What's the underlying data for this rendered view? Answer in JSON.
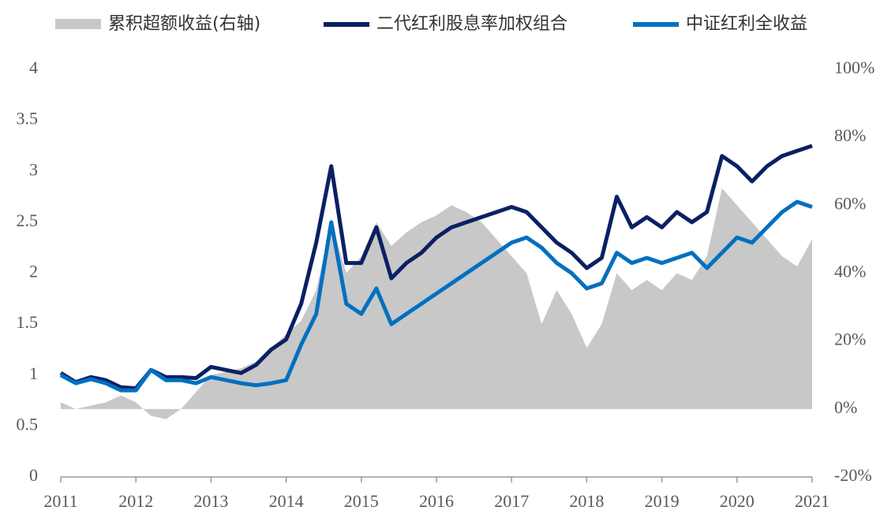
{
  "chart_data": {
    "type": "line",
    "x": [
      2011.0,
      2011.2,
      2011.4,
      2011.6,
      2011.8,
      2012.0,
      2012.2,
      2012.4,
      2012.6,
      2012.8,
      2013.0,
      2013.2,
      2013.4,
      2013.6,
      2013.8,
      2014.0,
      2014.2,
      2014.4,
      2014.6,
      2014.8,
      2015.0,
      2015.2,
      2015.4,
      2015.6,
      2015.8,
      2016.0,
      2016.2,
      2016.4,
      2016.6,
      2016.8,
      2017.0,
      2017.2,
      2017.4,
      2017.6,
      2017.8,
      2018.0,
      2018.2,
      2018.4,
      2018.6,
      2018.8,
      2019.0,
      2019.2,
      2019.4,
      2019.6,
      2019.8,
      2020.0,
      2020.2,
      2020.4,
      2020.6,
      2020.8,
      2021.0
    ],
    "xlim": [
      2011,
      2021
    ],
    "xticks": [
      2011,
      2012,
      2013,
      2014,
      2015,
      2016,
      2017,
      2018,
      2019,
      2020,
      2021
    ],
    "ylim": [
      0,
      4
    ],
    "yticks": [
      0,
      0.5,
      1,
      1.5,
      2,
      2.5,
      3,
      3.5,
      4
    ],
    "y2lim": [
      -20,
      100
    ],
    "y2ticks": [
      {
        "value": -20,
        "label": "-20%"
      },
      {
        "value": 0,
        "label": "0%"
      },
      {
        "value": 20,
        "label": "20%"
      },
      {
        "value": 40,
        "label": "40%"
      },
      {
        "value": 60,
        "label": "60%"
      },
      {
        "value": 80,
        "label": "80%"
      },
      {
        "value": 100,
        "label": "100%"
      }
    ],
    "series": [
      {
        "name": "累积超额收益(右轴)",
        "color": "#c8c8c8",
        "kind": "area",
        "axis": "y2",
        "values": [
          2,
          0,
          1,
          2,
          4,
          2,
          -2,
          -3,
          0,
          5,
          10,
          11,
          12,
          14,
          18,
          22,
          26,
          35,
          55,
          40,
          45,
          55,
          48,
          52,
          55,
          57,
          60,
          58,
          55,
          50,
          45,
          40,
          25,
          35,
          28,
          18,
          25,
          40,
          35,
          38,
          35,
          40,
          38,
          45,
          65,
          60,
          55,
          50,
          45,
          42,
          50
        ]
      },
      {
        "name": "二代红利股息率加权组合",
        "color": "#0a2063",
        "kind": "line",
        "values": [
          1.02,
          0.93,
          0.98,
          0.95,
          0.88,
          0.87,
          1.05,
          0.98,
          0.98,
          0.97,
          1.08,
          1.05,
          1.02,
          1.1,
          1.25,
          1.35,
          1.7,
          2.3,
          3.05,
          2.1,
          2.1,
          2.45,
          1.95,
          2.1,
          2.2,
          2.35,
          2.45,
          2.5,
          2.55,
          2.6,
          2.65,
          2.6,
          2.45,
          2.3,
          2.2,
          2.05,
          2.15,
          2.75,
          2.45,
          2.55,
          2.45,
          2.6,
          2.5,
          2.6,
          3.15,
          3.05,
          2.9,
          3.05,
          3.15,
          3.2,
          3.25
        ]
      },
      {
        "name": "中证红利全收益",
        "color": "#0070c0",
        "kind": "line",
        "values": [
          1.0,
          0.92,
          0.96,
          0.92,
          0.85,
          0.85,
          1.05,
          0.95,
          0.95,
          0.92,
          0.98,
          0.95,
          0.92,
          0.9,
          0.92,
          0.95,
          1.3,
          1.6,
          2.5,
          1.7,
          1.6,
          1.85,
          1.5,
          1.6,
          1.7,
          1.8,
          1.9,
          2.0,
          2.1,
          2.2,
          2.3,
          2.35,
          2.25,
          2.1,
          2.0,
          1.85,
          1.9,
          2.2,
          2.1,
          2.15,
          2.1,
          2.15,
          2.2,
          2.05,
          2.2,
          2.35,
          2.3,
          2.45,
          2.6,
          2.7,
          2.65
        ]
      }
    ]
  }
}
